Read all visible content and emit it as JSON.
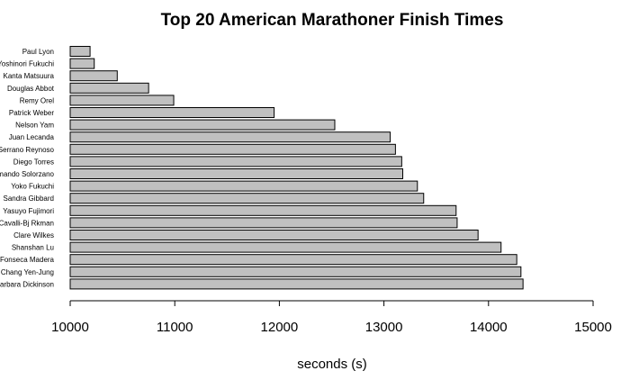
{
  "chart_data": {
    "type": "bar",
    "orientation": "horizontal",
    "title": "Top 20 American Marathoner Finish Times",
    "xlabel": "seconds (s)",
    "ylabel": "",
    "xlim": [
      10000,
      15000
    ],
    "xticks": [
      10000,
      11000,
      12000,
      13000,
      14000,
      15000
    ],
    "grid": false,
    "legend": "none",
    "bar_color": "#c0c0c0",
    "categories": [
      "Paul Lyon",
      "Yoshinori Fukuchi",
      "Kanta Matsuura",
      "Douglas Abbot",
      "Remy Orel",
      "Patrick Weber",
      "Nelson Yam",
      "Juan Lecanda",
      "Serrano Reynoso",
      "Diego Torres",
      "rmando Solorzano",
      "Yoko Fukuchi",
      "Sandra Gibbard",
      "Yasuyo Fujimori",
      "Cavalli-Bj Rkman",
      "Clare Wilkes",
      "Shanshan Lu",
      "Fonseca Madera",
      "Chang Yen-Jung",
      "Barbara Dickinson"
    ],
    "values": [
      10190,
      10230,
      10450,
      10750,
      10990,
      11950,
      12530,
      13060,
      13110,
      13170,
      13180,
      13320,
      13380,
      13690,
      13700,
      13900,
      14120,
      14270,
      14310,
      14330
    ]
  }
}
